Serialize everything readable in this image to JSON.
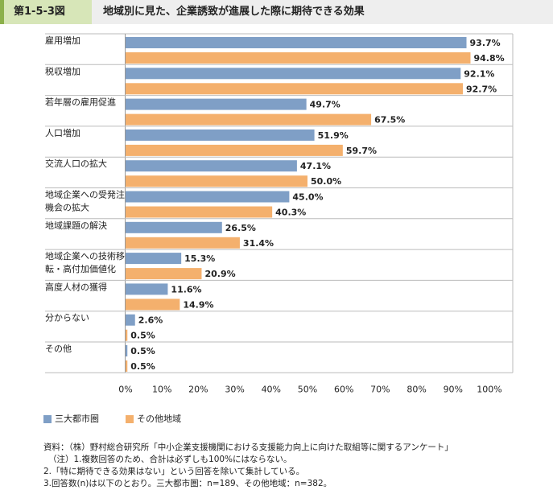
{
  "header": {
    "figure_number": "第1-5-3図",
    "title": "地域別に見た、企業誘致が進展した際に期待できる効果"
  },
  "colors": {
    "series1": "#7f9fc6",
    "series2": "#f4b06d",
    "header_bg": "#eeeeee",
    "figure_bg": "#d7e6b8",
    "figure_accent": "#8bb04a"
  },
  "chart_data": {
    "type": "bar",
    "orientation": "horizontal",
    "categories": [
      [
        "雇用増加"
      ],
      [
        "税収増加"
      ],
      [
        "若年層の雇用促進"
      ],
      [
        "人口増加"
      ],
      [
        "交流人口の拡大"
      ],
      [
        "地域企業への受発注",
        "機会の拡大"
      ],
      [
        "地域課題の解決"
      ],
      [
        "地域企業への技術移",
        "転・高付加価値化"
      ],
      [
        "高度人材の獲得"
      ],
      [
        "分からない"
      ],
      [
        "その他"
      ]
    ],
    "series": [
      {
        "name": "三大都市圏",
        "values": [
          93.7,
          92.1,
          49.7,
          51.9,
          47.1,
          45.0,
          26.5,
          15.3,
          11.6,
          2.6,
          0.5
        ]
      },
      {
        "name": "その他地域",
        "values": [
          94.8,
          92.7,
          67.5,
          59.7,
          50.0,
          40.3,
          31.4,
          20.9,
          14.9,
          0.5,
          0.5
        ]
      }
    ],
    "xlim": [
      0,
      100
    ],
    "xticks": [
      0,
      10,
      20,
      30,
      40,
      50,
      60,
      70,
      80,
      90,
      100
    ],
    "tick_suffix": "%",
    "value_suffix": "%",
    "grid": false,
    "legend_position": "bottom-left"
  },
  "notes": [
    "資料：（株）野村総合研究所「中小企業支援機関における支援能力向上に向けた取組等に関するアンケート」",
    "（注）1.複数回答のため、合計は必ずしも100%にはならない。",
    "2.「特に期待できる効果はない」という回答を除いて集計している。",
    "3.回答数(n)は以下のとおり。三大都市圏：n=189、その他地域：n=382。"
  ]
}
